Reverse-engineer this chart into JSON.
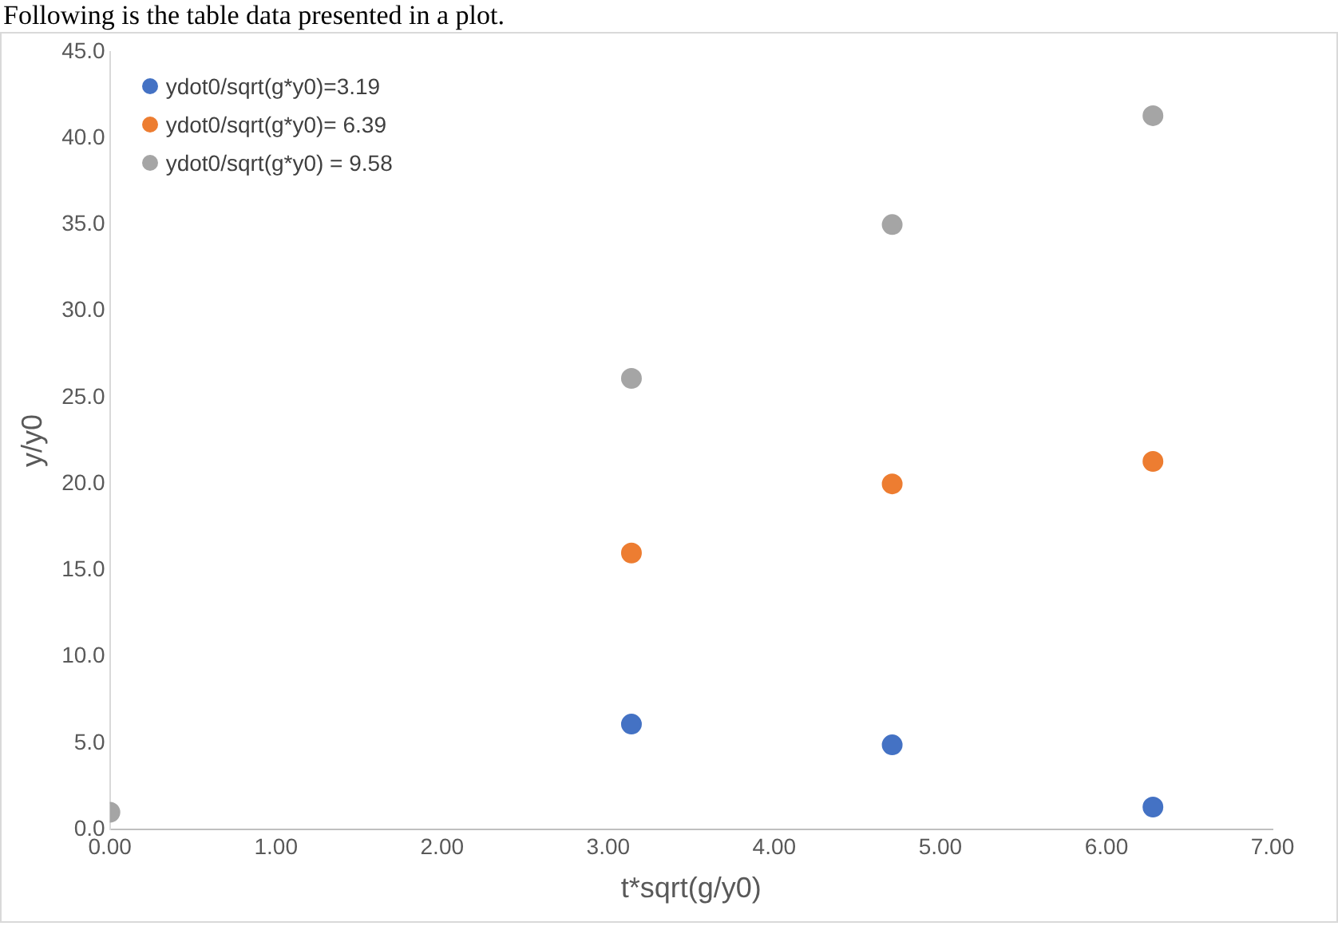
{
  "chart_data": {
    "type": "scatter",
    "annotations": [
      "Following is the table data presented in a plot."
    ],
    "xlabel": "t*sqrt(g/y0)",
    "ylabel": "y/y0",
    "xlim": [
      0,
      7
    ],
    "xticks": [
      {
        "value": 0,
        "label": "0.00"
      },
      {
        "value": 1,
        "label": "1.00"
      },
      {
        "value": 2,
        "label": "2.00"
      },
      {
        "value": 3,
        "label": "3.00"
      },
      {
        "value": 4,
        "label": "4.00"
      },
      {
        "value": 5,
        "label": "5.00"
      },
      {
        "value": 6,
        "label": "6.00"
      },
      {
        "value": 7,
        "label": "7.00"
      }
    ],
    "ylim": [
      0,
      45
    ],
    "yticks": [
      {
        "value": 0,
        "label": "0.0"
      },
      {
        "value": 5,
        "label": "5.0"
      },
      {
        "value": 10,
        "label": "10.0"
      },
      {
        "value": 15,
        "label": "15.0"
      },
      {
        "value": 20,
        "label": "20.0"
      },
      {
        "value": 25,
        "label": "25.0"
      },
      {
        "value": 30,
        "label": "30.0"
      },
      {
        "value": 35,
        "label": "35.0"
      },
      {
        "value": 40,
        "label": "40.0"
      },
      {
        "value": 45,
        "label": "45.0"
      }
    ],
    "grid": false,
    "legend": "top left",
    "marker": "circle",
    "series": [
      {
        "name": "ydot0/sqrt(g*y0)=3.19",
        "color": "#4472c4",
        "x": [
          3.14,
          4.71,
          6.28
        ],
        "values": [
          6.1,
          4.9,
          1.3
        ]
      },
      {
        "name": "ydot0/sqrt(g*y0)= 6.39",
        "color": "#ed7d31",
        "x": [
          3.14,
          4.71,
          6.28
        ],
        "values": [
          16.0,
          20.0,
          21.3
        ]
      },
      {
        "name": "ydot0/sqrt(g*y0) = 9.58",
        "color": "#a5a5a5",
        "x": [
          0,
          3.14,
          4.71,
          6.28
        ],
        "values": [
          1.0,
          26.1,
          35.0,
          41.3
        ]
      }
    ]
  }
}
